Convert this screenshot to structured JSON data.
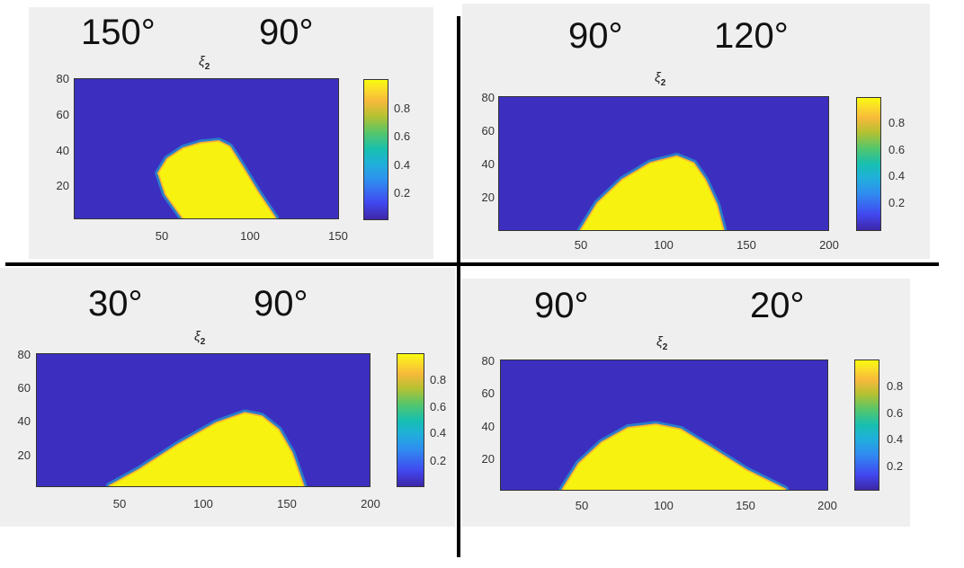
{
  "colors": {
    "background_field": "#3c2fc0",
    "region": "#f7f20f",
    "edge": "#fbb432",
    "halo": "#1fb4d0",
    "panel_bg": "#efefef"
  },
  "panels": [
    {
      "angle_left": "150°",
      "angle_right": "90°",
      "top_label": "ξ",
      "top_label_sub": "2",
      "yticks": [
        "80",
        "60",
        "40",
        "20"
      ],
      "xticks": [
        "50",
        "100",
        "150"
      ],
      "cticks": [
        "0.8",
        "0.6",
        "0.4",
        "0.2"
      ]
    },
    {
      "angle_left": "90°",
      "angle_right": "120°",
      "top_label": "ξ",
      "top_label_sub": "2",
      "yticks": [
        "80",
        "60",
        "40",
        "20"
      ],
      "xticks": [
        "50",
        "100",
        "150",
        "200"
      ],
      "cticks": [
        "0.8",
        "0.6",
        "0.4",
        "0.2"
      ]
    },
    {
      "angle_left": "30°",
      "angle_right": "90°",
      "top_label": "ξ",
      "top_label_sub": "2",
      "yticks": [
        "80",
        "60",
        "40",
        "20"
      ],
      "xticks": [
        "50",
        "100",
        "150",
        "200"
      ],
      "cticks": [
        "0.8",
        "0.6",
        "0.4",
        "0.2"
      ]
    },
    {
      "angle_left": "90°",
      "angle_right": "20°",
      "top_label": "ξ",
      "top_label_sub": "2",
      "yticks": [
        "80",
        "60",
        "40",
        "20"
      ],
      "xticks": [
        "50",
        "100",
        "150",
        "200"
      ],
      "cticks": [
        "0.8",
        "0.6",
        "0.4",
        "0.2"
      ]
    }
  ],
  "chart_data": [
    {
      "type": "heatmap",
      "xlim": [
        0,
        150
      ],
      "ylim": [
        0,
        80
      ],
      "clim": [
        0,
        1
      ],
      "region_boundary": [
        [
          62,
          0
        ],
        [
          52,
          14
        ],
        [
          48,
          26
        ],
        [
          53,
          34
        ],
        [
          62,
          40
        ],
        [
          72,
          43
        ],
        [
          82,
          44
        ],
        [
          88,
          41
        ],
        [
          95,
          30
        ],
        [
          104,
          15
        ],
        [
          114,
          0
        ]
      ]
    },
    {
      "type": "heatmap",
      "xlim": [
        0,
        200
      ],
      "ylim": [
        0,
        80
      ],
      "clim": [
        0,
        1
      ],
      "region_boundary": [
        [
          50,
          0
        ],
        [
          60,
          16
        ],
        [
          75,
          30
        ],
        [
          92,
          40
        ],
        [
          108,
          44
        ],
        [
          118,
          40
        ],
        [
          125,
          30
        ],
        [
          132,
          15
        ],
        [
          136,
          0
        ]
      ]
    },
    {
      "type": "heatmap",
      "xlim": [
        0,
        200
      ],
      "ylim": [
        0,
        80
      ],
      "clim": [
        0,
        1
      ],
      "region_boundary": [
        [
          44,
          0
        ],
        [
          62,
          10
        ],
        [
          85,
          25
        ],
        [
          108,
          38
        ],
        [
          125,
          44
        ],
        [
          135,
          42
        ],
        [
          145,
          34
        ],
        [
          153,
          20
        ],
        [
          160,
          0
        ]
      ]
    },
    {
      "type": "heatmap",
      "xlim": [
        0,
        200
      ],
      "ylim": [
        0,
        80
      ],
      "clim": [
        0,
        1
      ],
      "region_boundary": [
        [
          38,
          0
        ],
        [
          48,
          16
        ],
        [
          62,
          29
        ],
        [
          78,
          38
        ],
        [
          95,
          40
        ],
        [
          110,
          37
        ],
        [
          128,
          26
        ],
        [
          150,
          12
        ],
        [
          174,
          0
        ]
      ]
    }
  ]
}
